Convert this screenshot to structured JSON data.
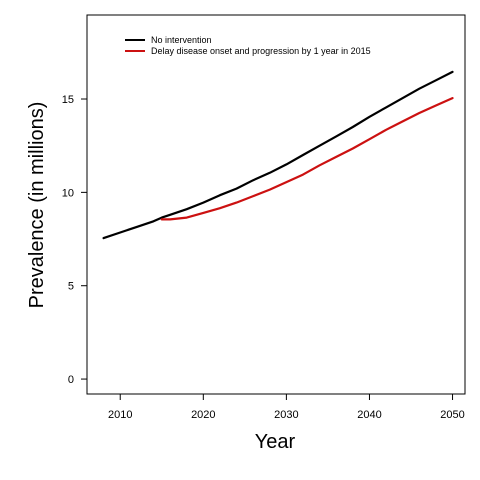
{
  "chart_data": {
    "type": "line",
    "xlabel": "Year",
    "ylabel": "Prevalence (in millions)",
    "xlim": [
      2006,
      2051.5
    ],
    "ylim": [
      -0.8,
      19.5
    ],
    "xticks": [
      2010,
      2020,
      2030,
      2040,
      2050
    ],
    "yticks": [
      0,
      5,
      10,
      15
    ],
    "grid": false,
    "legend_position": "top-left",
    "series": [
      {
        "name": "No intervention",
        "color": "#000000",
        "x": [
          2008,
          2010,
          2012,
          2014,
          2015,
          2016,
          2018,
          2020,
          2022,
          2024,
          2026,
          2028,
          2030,
          2032,
          2034,
          2036,
          2038,
          2040,
          2042,
          2044,
          2046,
          2048,
          2050
        ],
        "values": [
          7.55,
          7.85,
          8.15,
          8.45,
          8.65,
          8.8,
          9.1,
          9.45,
          9.85,
          10.2,
          10.65,
          11.05,
          11.5,
          12.0,
          12.5,
          13.0,
          13.5,
          14.05,
          14.55,
          15.05,
          15.55,
          16.0,
          16.45
        ]
      },
      {
        "name": "Delay disease onset and progression by 1 year in 2015",
        "color": "#cc1111",
        "x": [
          2015,
          2016,
          2018,
          2020,
          2022,
          2024,
          2026,
          2028,
          2030,
          2032,
          2034,
          2036,
          2038,
          2040,
          2042,
          2044,
          2046,
          2048,
          2050
        ],
        "values": [
          8.55,
          8.55,
          8.65,
          8.9,
          9.15,
          9.45,
          9.8,
          10.15,
          10.55,
          10.95,
          11.45,
          11.9,
          12.35,
          12.85,
          13.35,
          13.8,
          14.25,
          14.65,
          15.05
        ]
      }
    ]
  }
}
